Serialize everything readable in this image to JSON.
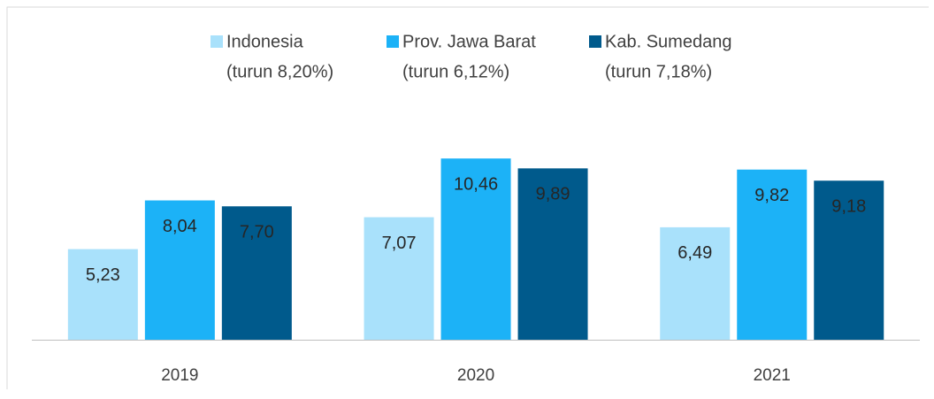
{
  "chart_data": {
    "type": "bar",
    "categories": [
      "2019",
      "2020",
      "2021"
    ],
    "series": [
      {
        "name": "Indonesia",
        "note": "(turun 8,20%)",
        "color": "#a9e1fb",
        "values": [
          5.23,
          7.07,
          6.49
        ],
        "value_labels": [
          "5,23",
          "7,07",
          "6,49"
        ]
      },
      {
        "name": "Prov. Jawa Barat",
        "note": "(turun 6,12%)",
        "color": "#1cb2f7",
        "values": [
          8.04,
          10.46,
          9.82
        ],
        "value_labels": [
          "8,04",
          "10,46",
          "9,82"
        ]
      },
      {
        "name": "Kab. Sumedang",
        "note": "(turun 7,18%)",
        "color": "#005a8c",
        "values": [
          7.7,
          9.89,
          9.18
        ],
        "value_labels": [
          "7,70",
          "9,89",
          "9,18"
        ]
      }
    ],
    "ylim": [
      0,
      12
    ],
    "legend": "top"
  }
}
